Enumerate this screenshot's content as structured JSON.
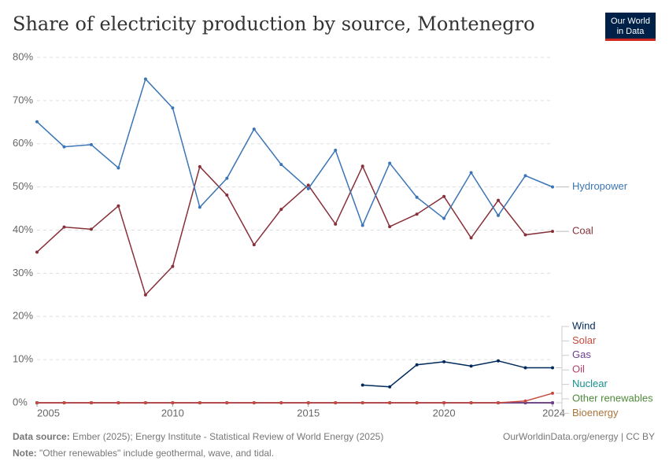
{
  "chart_data": {
    "type": "line",
    "title": "Share of electricity production by source, Montenegro",
    "logo": [
      "Our World",
      "in Data"
    ],
    "x": [
      2005,
      2006,
      2007,
      2008,
      2009,
      2010,
      2011,
      2012,
      2013,
      2014,
      2015,
      2016,
      2017,
      2018,
      2019,
      2020,
      2021,
      2022,
      2023,
      2024
    ],
    "xlim": [
      2005,
      2024
    ],
    "xticks": [
      2005,
      2010,
      2015,
      2020,
      2024
    ],
    "ylim": [
      0,
      80
    ],
    "yticks": [
      {
        "value": 0,
        "label": "0%"
      },
      {
        "value": 10,
        "label": "10%"
      },
      {
        "value": 20,
        "label": "20%"
      },
      {
        "value": 30,
        "label": "30%"
      },
      {
        "value": 40,
        "label": "40%"
      },
      {
        "value": 50,
        "label": "50%"
      },
      {
        "value": 60,
        "label": "60%"
      },
      {
        "value": 70,
        "label": "70%"
      },
      {
        "value": 80,
        "label": "80%"
      }
    ],
    "grid": true,
    "series": [
      {
        "name": "Hydropower",
        "color": "#3a75b5",
        "values": [
          65.1,
          59.3,
          59.8,
          54.4,
          75.0,
          68.3,
          45.3,
          52.0,
          63.4,
          55.2,
          49.6,
          58.5,
          41.1,
          55.5,
          47.6,
          42.7,
          53.3,
          43.4,
          52.6,
          50.0
        ]
      },
      {
        "name": "Coal",
        "color": "#883039",
        "values": [
          34.9,
          40.7,
          40.2,
          45.6,
          25.0,
          31.6,
          54.7,
          48.1,
          36.6,
          44.8,
          50.4,
          41.4,
          54.8,
          40.8,
          43.7,
          47.8,
          38.2,
          46.9,
          38.9,
          39.7
        ]
      },
      {
        "name": "Wind",
        "color": "#00295b",
        "values": [
          null,
          null,
          null,
          null,
          null,
          null,
          null,
          null,
          null,
          null,
          null,
          null,
          4.1,
          3.7,
          8.8,
          9.5,
          8.5,
          9.7,
          8.1,
          8.1
        ]
      },
      {
        "name": "Solar",
        "color": "#c74a3e",
        "values": [
          0,
          0,
          0,
          0,
          0,
          0,
          0,
          0,
          0,
          0,
          0,
          0,
          0,
          0,
          0,
          0,
          0,
          0,
          0.4,
          2.2
        ]
      },
      {
        "name": "Gas",
        "color": "#6d3e91",
        "values": [
          0,
          0,
          0,
          0,
          0,
          0,
          0,
          0,
          0,
          0,
          0,
          0,
          0,
          0,
          0,
          0,
          0,
          0,
          0,
          0
        ]
      },
      {
        "name": "Oil",
        "color": "#b5416a",
        "values": [
          0,
          0,
          0,
          0,
          0,
          0,
          0,
          0,
          0,
          0,
          0,
          0,
          0,
          0,
          0,
          0,
          0,
          0,
          0,
          0
        ]
      },
      {
        "name": "Nuclear",
        "color": "#18908c",
        "values": [
          0,
          0,
          0,
          0,
          0,
          0,
          0,
          0,
          0,
          0,
          0,
          0,
          0,
          0,
          0,
          0,
          0,
          0,
          0,
          0
        ]
      },
      {
        "name": "Other renewables",
        "color": "#4e8a3a",
        "values": [
          0,
          0,
          0,
          0,
          0,
          0,
          0,
          0,
          0,
          0,
          0,
          0,
          0,
          0,
          0,
          0,
          0,
          0,
          0,
          0
        ]
      },
      {
        "name": "Bioenergy",
        "color": "#a8753b",
        "values": [
          0,
          0,
          0,
          0,
          0,
          0,
          0,
          0,
          0,
          0,
          0,
          0,
          0,
          0,
          0,
          0,
          0,
          0,
          0,
          0
        ]
      }
    ],
    "source_label": "Data source:",
    "source": "Ember (2025); Energy Institute - Statistical Review of World Energy (2025)",
    "url": "OurWorldinData.org/energy | CC BY",
    "note_label": "Note:",
    "note": "\"Other renewables\" include geothermal, wave, and tidal."
  }
}
